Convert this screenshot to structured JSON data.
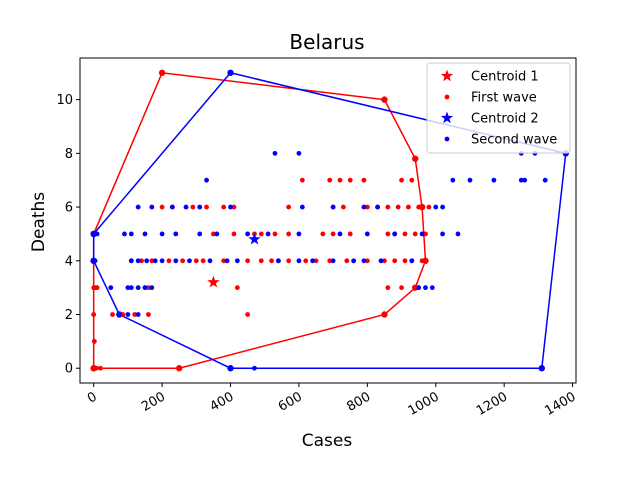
{
  "chart_data": {
    "type": "scatter",
    "title": "Belarus",
    "xlabel": "Cases",
    "ylabel": "Deaths",
    "xlim": [
      -40,
      1410
    ],
    "ylim": [
      -0.55,
      11.55
    ],
    "x_ticks": [
      0,
      200,
      400,
      600,
      800,
      1000,
      1200,
      1400
    ],
    "y_ticks": [
      0,
      2,
      4,
      6,
      8,
      10
    ],
    "grid": false,
    "legend_position": "top-right",
    "legend": [
      "Centroid 1",
      "First wave",
      "Centroid 2",
      "Second wave"
    ],
    "series": [
      {
        "name": "First wave",
        "color": "#ff0000",
        "marker": "dot",
        "points": [
          [
            0,
            0
          ],
          [
            3,
            0
          ],
          [
            8,
            0
          ],
          [
            20,
            0
          ],
          [
            250,
            0
          ],
          [
            2,
            1
          ],
          [
            0,
            2
          ],
          [
            55,
            2
          ],
          [
            85,
            2
          ],
          [
            120,
            2
          ],
          [
            160,
            2
          ],
          [
            450,
            2
          ],
          [
            850,
            2
          ],
          [
            0,
            3
          ],
          [
            5,
            3
          ],
          [
            10,
            3
          ],
          [
            150,
            3
          ],
          [
            160,
            3
          ],
          [
            420,
            3
          ],
          [
            860,
            3
          ],
          [
            900,
            3
          ],
          [
            950,
            3
          ],
          [
            110,
            4
          ],
          [
            140,
            4
          ],
          [
            170,
            4
          ],
          [
            220,
            4
          ],
          [
            260,
            4
          ],
          [
            300,
            4
          ],
          [
            320,
            4
          ],
          [
            380,
            4
          ],
          [
            450,
            4
          ],
          [
            490,
            4
          ],
          [
            520,
            4
          ],
          [
            540,
            4
          ],
          [
            570,
            4
          ],
          [
            620,
            4
          ],
          [
            650,
            4
          ],
          [
            690,
            4
          ],
          [
            740,
            4
          ],
          [
            800,
            4
          ],
          [
            850,
            4
          ],
          [
            880,
            4
          ],
          [
            910,
            4
          ],
          [
            930,
            4
          ],
          [
            960,
            4
          ],
          [
            350,
            5
          ],
          [
            410,
            5
          ],
          [
            470,
            5
          ],
          [
            490,
            5
          ],
          [
            530,
            5
          ],
          [
            570,
            5
          ],
          [
            670,
            5
          ],
          [
            700,
            5
          ],
          [
            750,
            5
          ],
          [
            860,
            5
          ],
          [
            880,
            5
          ],
          [
            910,
            5
          ],
          [
            940,
            5
          ],
          [
            970,
            5
          ],
          [
            200,
            6
          ],
          [
            230,
            6
          ],
          [
            290,
            6
          ],
          [
            330,
            6
          ],
          [
            380,
            6
          ],
          [
            410,
            6
          ],
          [
            570,
            6
          ],
          [
            700,
            6
          ],
          [
            730,
            6
          ],
          [
            800,
            6
          ],
          [
            830,
            6
          ],
          [
            860,
            6
          ],
          [
            890,
            6
          ],
          [
            920,
            6
          ],
          [
            950,
            6
          ],
          [
            980,
            6
          ],
          [
            610,
            7
          ],
          [
            690,
            7
          ],
          [
            720,
            7
          ],
          [
            750,
            7
          ],
          [
            790,
            7
          ],
          [
            900,
            7
          ],
          [
            930,
            7
          ],
          [
            940,
            7.8
          ],
          [
            850,
            10
          ],
          [
            200,
            11
          ]
        ]
      },
      {
        "name": "Centroid 1",
        "color": "#ff0000",
        "marker": "star",
        "points": [
          [
            350,
            3.2
          ]
        ]
      },
      {
        "name": "Second wave",
        "color": "#0000ff",
        "marker": "dot",
        "points": [
          [
            400,
            0
          ],
          [
            470,
            0
          ],
          [
            1310,
            0
          ],
          [
            75,
            2
          ],
          [
            100,
            2
          ],
          [
            130,
            2
          ],
          [
            50,
            3
          ],
          [
            100,
            3
          ],
          [
            110,
            3
          ],
          [
            130,
            3
          ],
          [
            150,
            3
          ],
          [
            170,
            3
          ],
          [
            950,
            3
          ],
          [
            970,
            3
          ],
          [
            990,
            3
          ],
          [
            0,
            4
          ],
          [
            4,
            4
          ],
          [
            110,
            4
          ],
          [
            130,
            4
          ],
          [
            155,
            4
          ],
          [
            180,
            4
          ],
          [
            200,
            4
          ],
          [
            240,
            4
          ],
          [
            280,
            4
          ],
          [
            340,
            4
          ],
          [
            390,
            4
          ],
          [
            420,
            4
          ],
          [
            540,
            4
          ],
          [
            600,
            4
          ],
          [
            640,
            4
          ],
          [
            700,
            4
          ],
          [
            760,
            4
          ],
          [
            790,
            4
          ],
          [
            840,
            4
          ],
          [
            930,
            4
          ],
          [
            0,
            5
          ],
          [
            10,
            5
          ],
          [
            90,
            5
          ],
          [
            110,
            5
          ],
          [
            150,
            5
          ],
          [
            200,
            5
          ],
          [
            240,
            5
          ],
          [
            310,
            5
          ],
          [
            360,
            5
          ],
          [
            450,
            5
          ],
          [
            510,
            5
          ],
          [
            600,
            5
          ],
          [
            720,
            5
          ],
          [
            800,
            5
          ],
          [
            880,
            5
          ],
          [
            960,
            5
          ],
          [
            1020,
            5
          ],
          [
            1065,
            5
          ],
          [
            130,
            6
          ],
          [
            170,
            6
          ],
          [
            230,
            6
          ],
          [
            270,
            6
          ],
          [
            310,
            6
          ],
          [
            400,
            6
          ],
          [
            610,
            6
          ],
          [
            700,
            6
          ],
          [
            790,
            6
          ],
          [
            830,
            6
          ],
          [
            1000,
            6
          ],
          [
            1020,
            6
          ],
          [
            330,
            7
          ],
          [
            1050,
            7
          ],
          [
            1100,
            7
          ],
          [
            1170,
            7
          ],
          [
            1250,
            7
          ],
          [
            1260,
            7
          ],
          [
            1320,
            7
          ],
          [
            530,
            8
          ],
          [
            600,
            8
          ],
          [
            1250,
            8
          ],
          [
            1290,
            8
          ],
          [
            1380,
            8
          ],
          [
            400,
            11
          ]
        ]
      },
      {
        "name": "Centroid 2",
        "color": "#0000ff",
        "marker": "star",
        "points": [
          [
            470,
            4.8
          ]
        ]
      }
    ],
    "hulls": [
      {
        "series": "First wave",
        "color": "#ff0000",
        "points": [
          [
            0,
            0
          ],
          [
            250,
            0
          ],
          [
            850,
            2
          ],
          [
            940,
            3
          ],
          [
            970,
            4
          ],
          [
            960,
            6
          ],
          [
            940,
            7.8
          ],
          [
            850,
            10
          ],
          [
            200,
            11
          ],
          [
            0,
            5
          ],
          [
            0,
            0
          ]
        ]
      },
      {
        "series": "Second wave",
        "color": "#0000ff",
        "points": [
          [
            0,
            4
          ],
          [
            75,
            2
          ],
          [
            400,
            0
          ],
          [
            1310,
            0
          ],
          [
            1380,
            8
          ],
          [
            400,
            11
          ],
          [
            0,
            5
          ],
          [
            0,
            4
          ]
        ]
      }
    ]
  }
}
